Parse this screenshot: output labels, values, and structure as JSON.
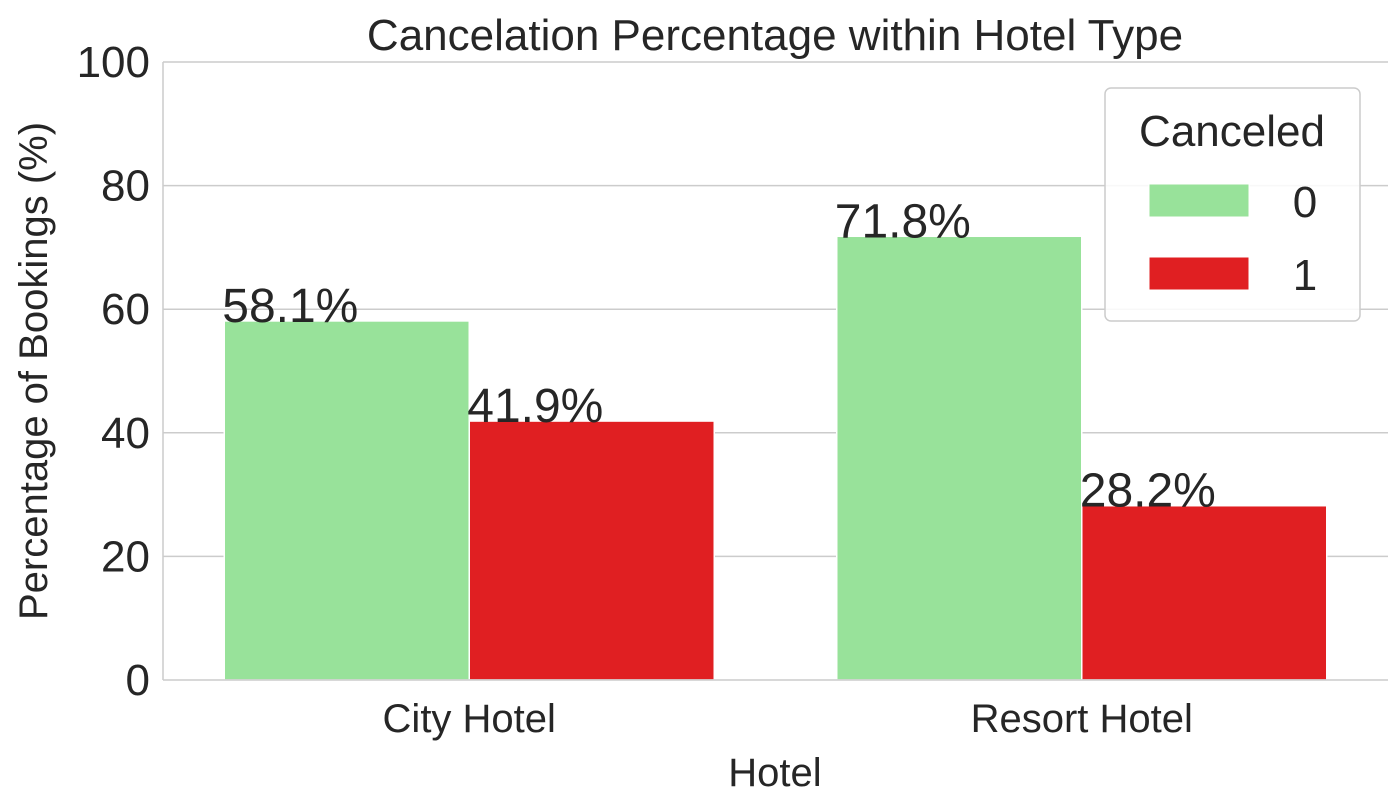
{
  "chart_data": {
    "type": "bar",
    "title": "Cancelation Percentage within Hotel Type",
    "xlabel": "Hotel",
    "ylabel": "Percentage of Bookings (%)",
    "categories": [
      "City Hotel",
      "Resort Hotel"
    ],
    "series": [
      {
        "name": "0",
        "color": "#98e29a",
        "values": [
          58.1,
          71.8
        ],
        "labels": [
          "58.1%",
          "71.8%"
        ]
      },
      {
        "name": "1",
        "color": "#e01f22",
        "values": [
          41.9,
          28.2
        ],
        "labels": [
          "41.9%",
          "28.2%"
        ]
      }
    ],
    "ylim": [
      0,
      100
    ],
    "yticks": [
      0,
      20,
      40,
      60,
      80,
      100
    ],
    "grid": true,
    "legend": {
      "title": "Canceled",
      "position": "top-right"
    }
  }
}
